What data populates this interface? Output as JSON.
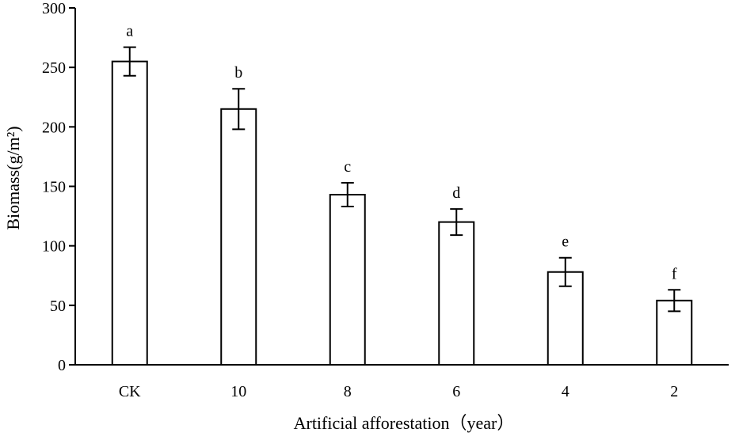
{
  "chart_data": {
    "type": "bar",
    "title": "",
    "xlabel": "Artificial afforestation（year）",
    "ylabel": "Biomass(g/m²)",
    "categories": [
      "CK",
      "10",
      "8",
      "6",
      "4",
      "2"
    ],
    "values": [
      255,
      215,
      143,
      120,
      78,
      54
    ],
    "errors": [
      12,
      17,
      10,
      11,
      12,
      9
    ],
    "significance_letters": [
      "a",
      "b",
      "c",
      "d",
      "e",
      "f"
    ],
    "ylim": [
      0,
      300
    ],
    "yticks": [
      0,
      50,
      100,
      150,
      200,
      250,
      300
    ],
    "grid": false,
    "legend": "none"
  }
}
